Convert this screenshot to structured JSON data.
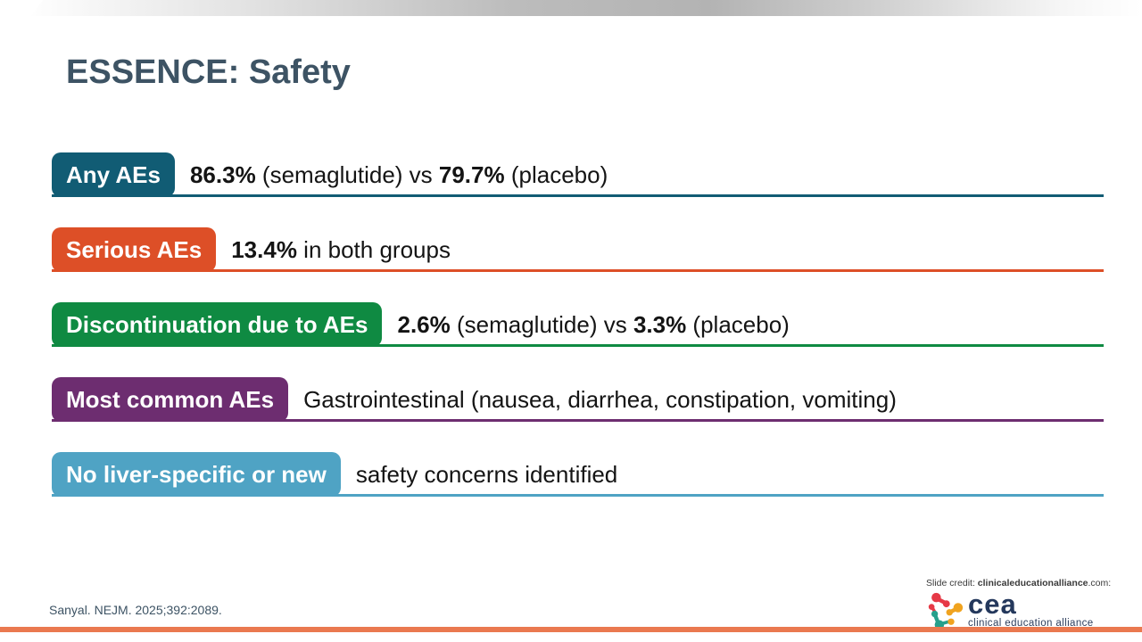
{
  "slide": {
    "title": "ESSENCE: Safety",
    "citation": "Sanyal. NEJM. 2025;392:2089.",
    "colors": {
      "title_text": "#3d5364",
      "top_bar_gray": "#b5b5b5",
      "bottom_bar": "#ea7950",
      "body_text": "#141414"
    }
  },
  "rows": [
    {
      "label": "Any AEs",
      "color": "#115c74",
      "segments": [
        {
          "text": "86.3%",
          "bold": true
        },
        {
          "text": " (semaglutide) vs ",
          "bold": false
        },
        {
          "text": "79.7%",
          "bold": true
        },
        {
          "text": " (placebo)",
          "bold": false
        }
      ]
    },
    {
      "label": "Serious AEs",
      "color": "#dd4f27",
      "segments": [
        {
          "text": "13.4%",
          "bold": true
        },
        {
          "text": " in both groups",
          "bold": false
        }
      ]
    },
    {
      "label": "Discontinuation due to AEs",
      "color": "#0f8a42",
      "segments": [
        {
          "text": "2.6%",
          "bold": true
        },
        {
          "text": " (semaglutide) vs ",
          "bold": false
        },
        {
          "text": "3.3%",
          "bold": true
        },
        {
          "text": " (placebo)",
          "bold": false
        }
      ]
    },
    {
      "label": "Most common AEs",
      "color": "#6d2d70",
      "segments": [
        {
          "text": "Gastrointestinal (nausea, diarrhea, constipation, vomiting)",
          "bold": false
        }
      ]
    },
    {
      "label": "No liver-specific or new",
      "color": "#4fa3c4",
      "segments": [
        {
          "text": "safety concerns identified",
          "bold": false
        }
      ]
    }
  ],
  "footer": {
    "credit_prefix": "Slide credit: ",
    "credit_bold": "clinicaleducationalliance",
    "credit_suffix": ".com:",
    "logo_text": "cea",
    "logo_subtext": "clinical education alliance",
    "logo_colors": {
      "red": "#e63946",
      "yellow": "#f0a31f",
      "teal": "#27a08c",
      "navy": "#24385c"
    }
  }
}
